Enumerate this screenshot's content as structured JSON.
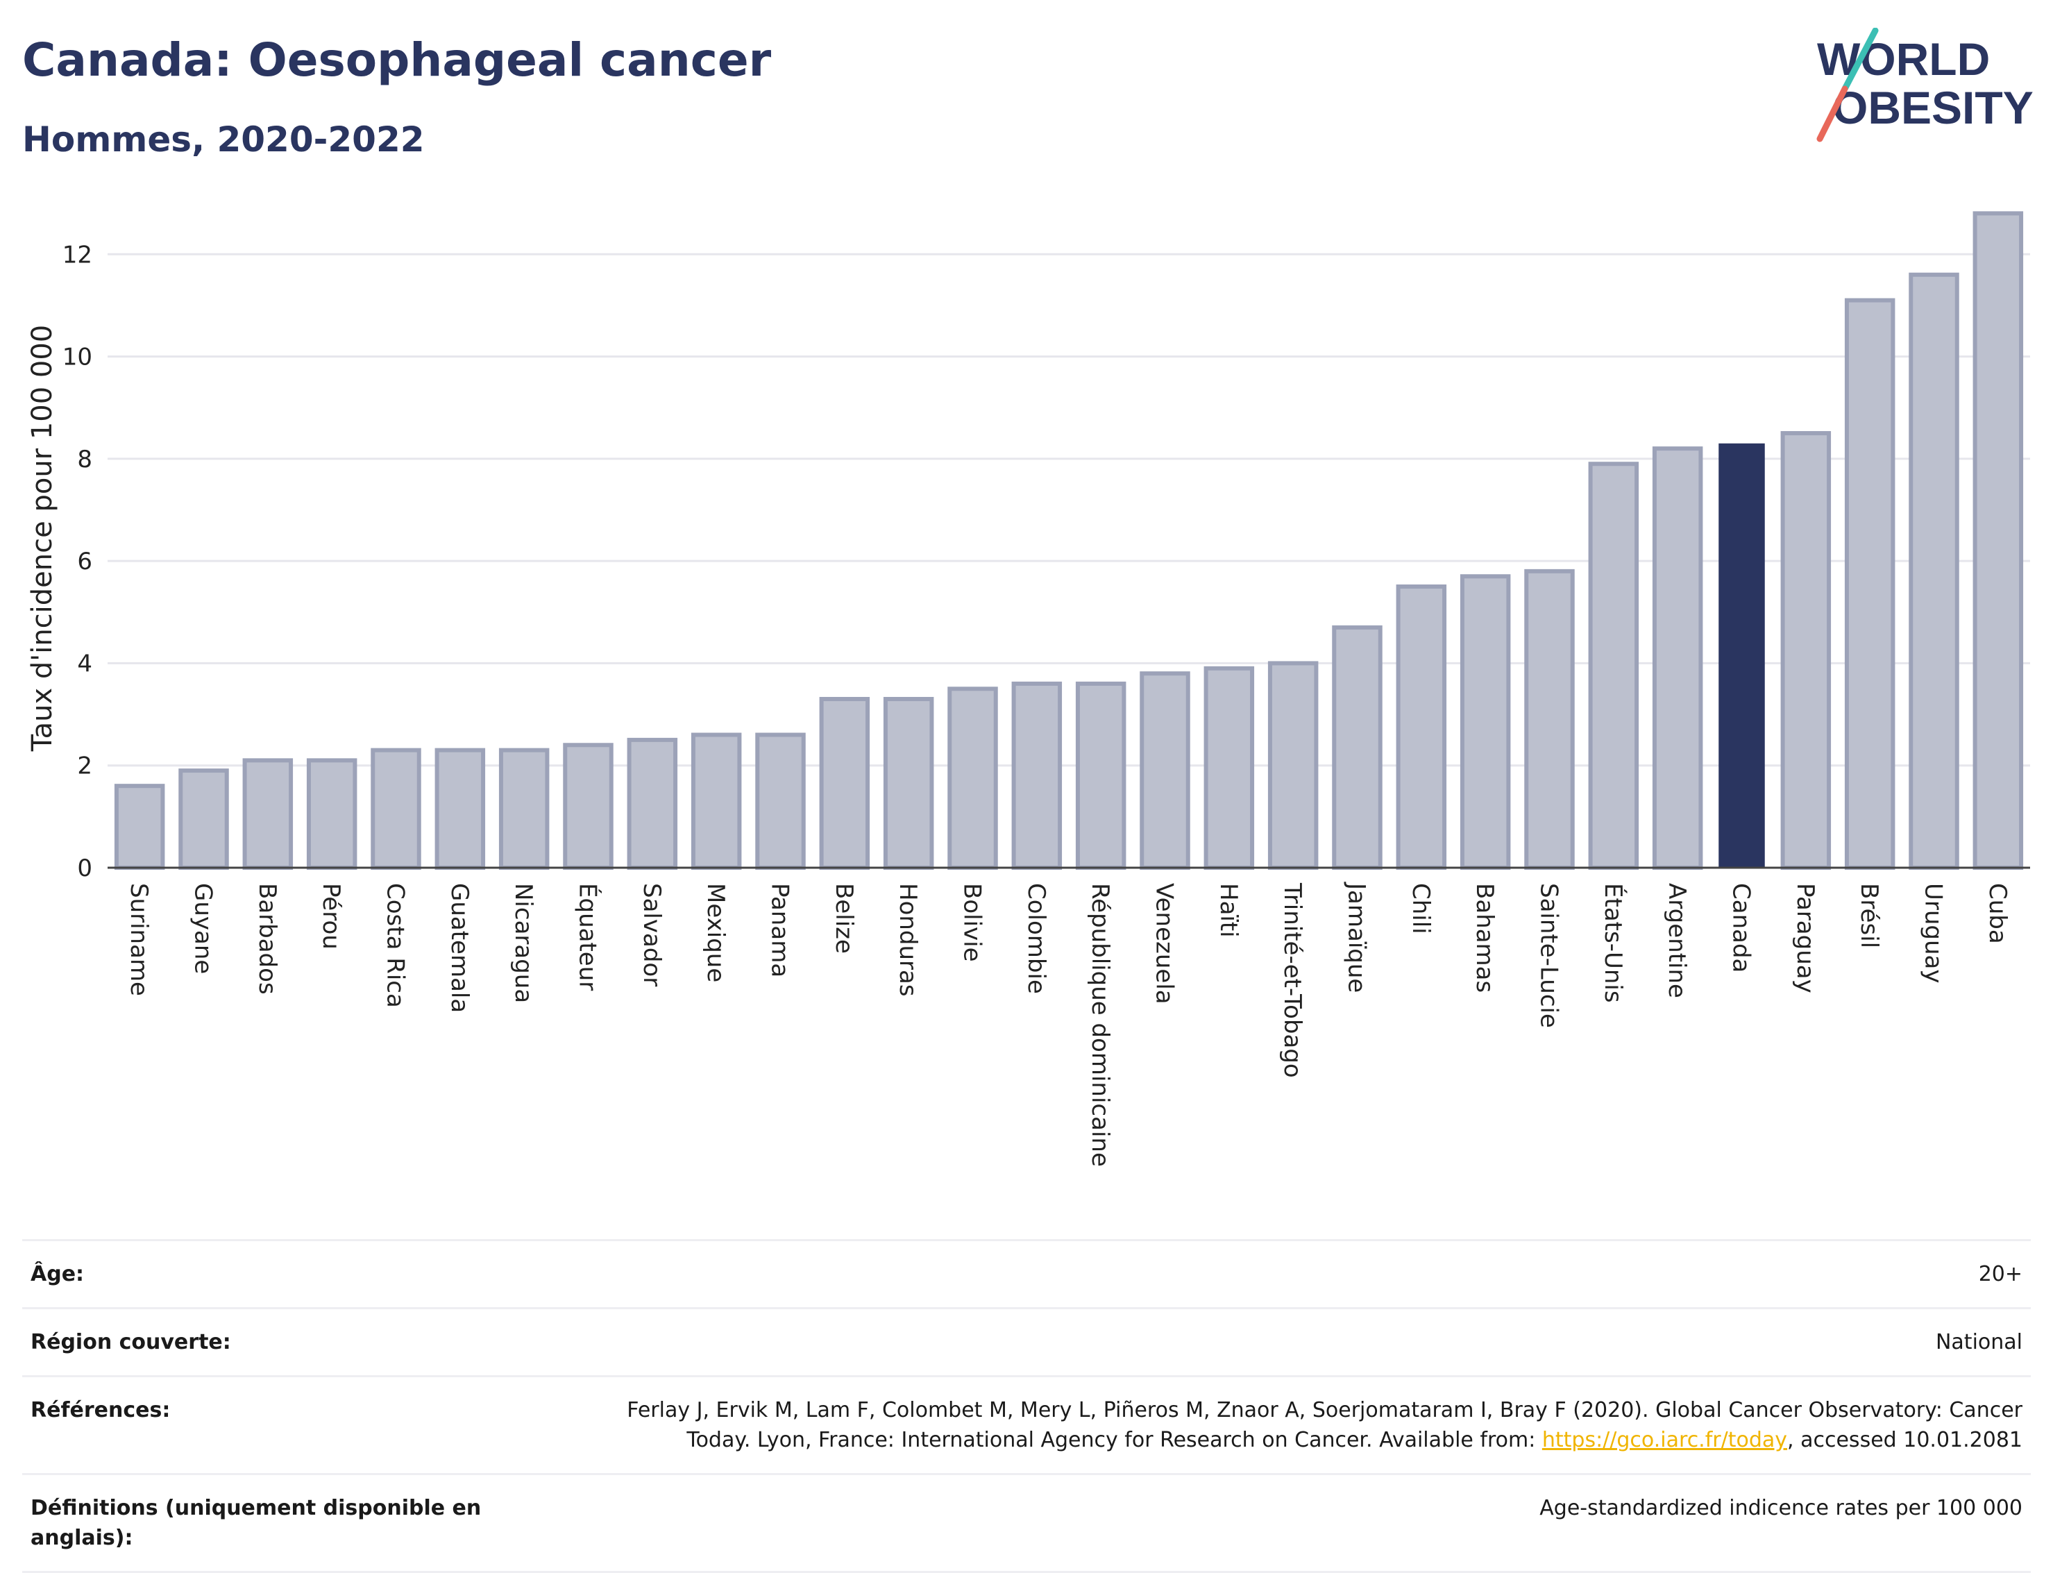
{
  "header": {
    "title": "Canada: Oesophageal cancer",
    "subtitle": "Hommes, 2020-2022"
  },
  "logo": {
    "line1": "WORLD",
    "line2": "OBESITY"
  },
  "colors": {
    "bar": "#bcc0ce",
    "bar_border": "#9ca2b8",
    "highlight": "#2a3560",
    "title": "#2a3560",
    "link": "#f0b400"
  },
  "chart_data": {
    "type": "bar",
    "ylabel": "Taux d'incidence pour 100 000",
    "xlabel": "",
    "ylim": [
      0,
      12.9
    ],
    "yticks": [
      0,
      2,
      4,
      6,
      8,
      10,
      12
    ],
    "grid": true,
    "highlight": "Canada",
    "categories": [
      "Suriname",
      "Guyane",
      "Barbados",
      "Pérou",
      "Costa Rica",
      "Guatemala",
      "Nicaragua",
      "Équateur",
      "Salvador",
      "Mexique",
      "Panama",
      "Belize",
      "Honduras",
      "Bolivie",
      "Colombie",
      "République dominicaine",
      "Venezuela",
      "Haïti",
      "Trinité-et-Tobago",
      "Jamaïque",
      "Chili",
      "Bahamas",
      "Sainte-Lucie",
      "États-Unis",
      "Argentine",
      "Canada",
      "Paraguay",
      "Brésil",
      "Uruguay",
      "Cuba"
    ],
    "values": [
      1.6,
      1.9,
      2.1,
      2.1,
      2.3,
      2.3,
      2.3,
      2.4,
      2.5,
      2.6,
      2.6,
      3.3,
      3.3,
      3.5,
      3.6,
      3.6,
      3.8,
      3.9,
      4.0,
      4.7,
      5.5,
      5.7,
      5.8,
      7.9,
      8.2,
      8.3,
      8.5,
      11.1,
      11.6,
      12.8
    ]
  },
  "info": {
    "age": {
      "label": "Âge:",
      "value": "20+"
    },
    "region": {
      "label": "Région couverte:",
      "value": "National"
    },
    "references": {
      "label": "Références:",
      "text1": "Ferlay J, Ervik M, Lam F, Colombet M, Mery L, Piñeros M, Znaor A, Soerjomataram I, Bray F (2020). Global Cancer Observatory: Cancer Today. Lyon, France: International Agency for Research on Cancer. Available from: ",
      "link": "https://gco.iarc.fr/today",
      "text2": ", accessed 10.01.2081"
    },
    "definitions": {
      "label": "Définitions (uniquement disponible en anglais):",
      "value": "Age-standardized indicence rates per 100 000"
    }
  }
}
